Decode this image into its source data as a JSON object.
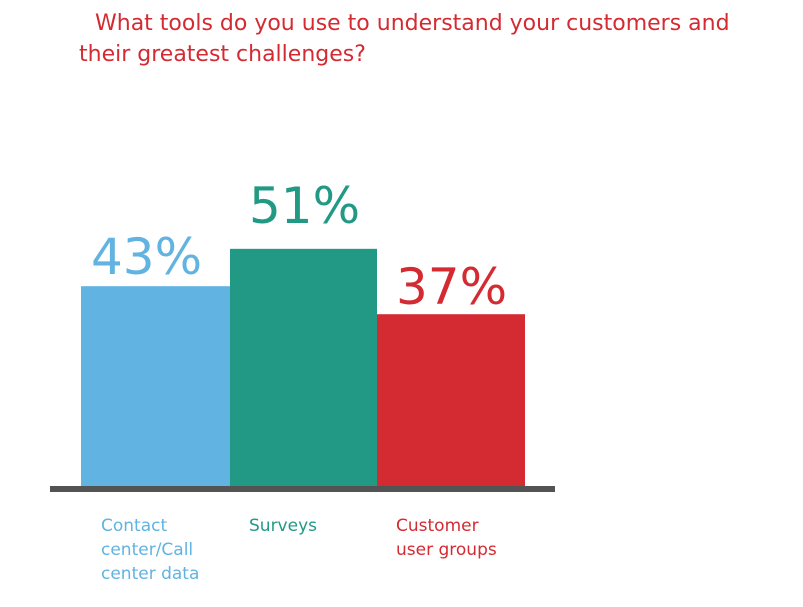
{
  "chart_data": {
    "type": "bar",
    "title": "What tools do you use to understand your customers and their greatest challenges?",
    "categories": [
      "Contact\ncenter/Call\ncenter data",
      "Surveys",
      "Customer\nuser groups"
    ],
    "values": [
      43,
      51,
      37
    ],
    "value_labels": [
      "43%",
      "51%",
      "37%"
    ],
    "colors": [
      "#61b3e1",
      "#229985",
      "#d42a32"
    ],
    "unit": "%",
    "ylim": [
      0,
      100
    ],
    "grid": false,
    "legend": "none"
  },
  "colors": {
    "title": "#d42a32",
    "baseline": "#535353",
    "background": "#ffffff"
  }
}
